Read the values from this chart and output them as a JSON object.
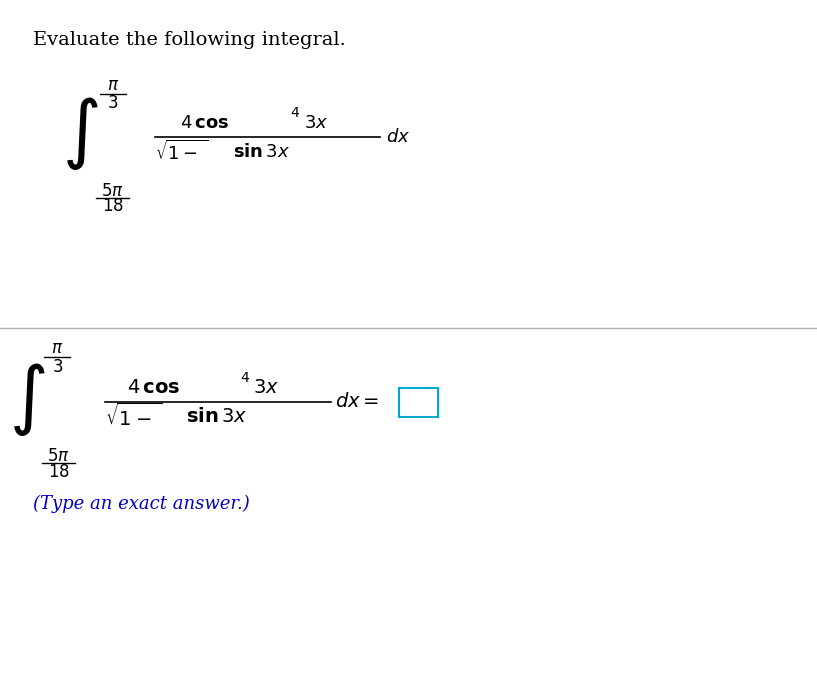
{
  "title": "Evaluate the following integral.",
  "title_color": "#000000",
  "title_fontsize": 14,
  "bg_color": "#f0f0f0",
  "panel_bg": "#ffffff",
  "blue_text": "(Type an exact answer.)",
  "blue_color": "#0000cc",
  "separator_color": "#b0b0b0",
  "box_color": "#00aacc"
}
